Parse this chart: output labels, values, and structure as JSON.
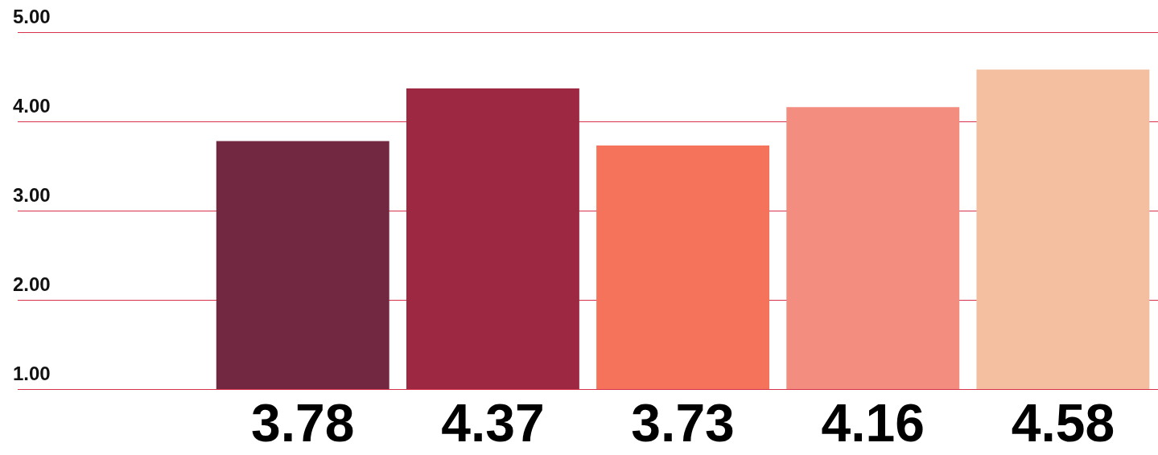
{
  "chart_data": {
    "type": "bar",
    "categories": [
      null,
      null,
      null,
      null,
      null,
      null
    ],
    "values": [
      null,
      3.78,
      4.37,
      3.73,
      4.16,
      4.58
    ],
    "colors": [
      "#722841",
      "#722841",
      "#9c2941",
      "#f4735a",
      "#f38d7f",
      "#f3bfa0"
    ],
    "ylim": [
      1,
      5
    ],
    "yticks": [
      {
        "value": 1,
        "label": "1.00"
      },
      {
        "value": 2,
        "label": "2.00"
      },
      {
        "value": 3,
        "label": "3.00"
      },
      {
        "value": 4,
        "label": "4.00"
      },
      {
        "value": 5,
        "label": "5.00"
      }
    ],
    "grid": "y",
    "data_labels": true
  }
}
